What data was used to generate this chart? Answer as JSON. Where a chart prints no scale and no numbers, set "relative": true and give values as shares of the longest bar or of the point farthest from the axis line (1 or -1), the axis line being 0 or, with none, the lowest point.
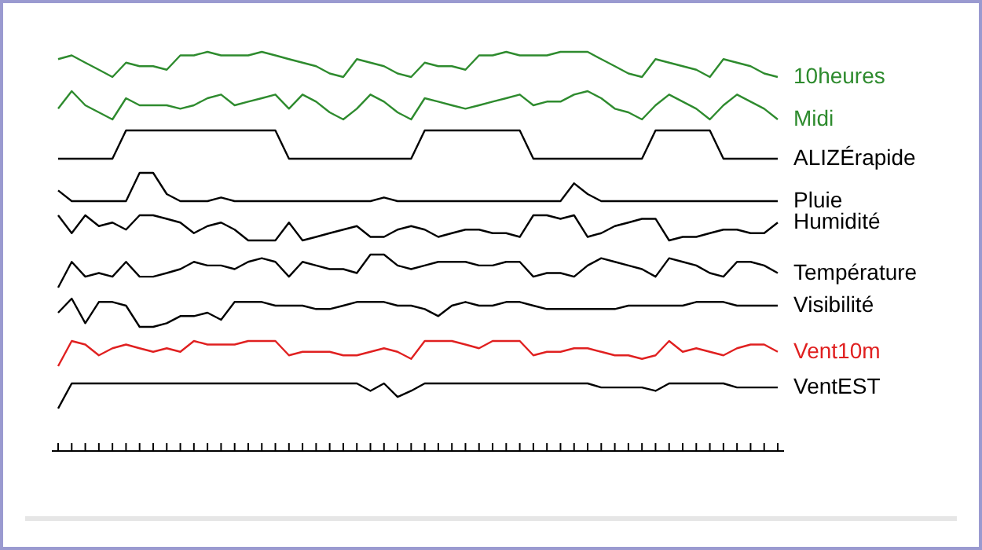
{
  "chart_data": [
    {
      "type": "line",
      "relative": true,
      "categories": [
        null,
        null,
        null,
        null,
        null,
        null,
        null,
        null,
        null,
        null,
        null,
        null,
        null,
        null,
        null,
        null,
        null,
        null,
        null,
        null,
        null,
        null,
        null,
        null,
        null,
        null,
        null,
        null,
        null,
        null,
        null,
        null,
        null,
        null,
        null,
        null,
        null,
        null,
        null,
        null,
        null,
        null,
        null,
        null,
        null,
        null,
        null,
        null,
        null,
        null,
        null,
        null,
        null,
        null
      ],
      "series": [
        {
          "name": "10heures",
          "color": "#2e8b2e",
          "values": [
            0.71,
            0.86,
            0.57,
            0.29,
            0,
            0.57,
            0.43,
            0.43,
            0.29,
            0.86,
            0.86,
            1,
            0.86,
            0.86,
            0.86,
            1,
            0.86,
            0.71,
            0.57,
            0.43,
            0.14,
            0,
            0.71,
            0.57,
            0.43,
            0.14,
            0,
            0.57,
            0.43,
            0.43,
            0.29,
            0.86,
            0.86,
            1,
            0.86,
            0.86,
            0.86,
            1,
            1,
            1,
            0.71,
            0.43,
            0.14,
            0,
            0.71,
            0.57,
            0.43,
            0.29,
            0,
            0.71,
            0.57,
            0.43,
            0.14,
            0
          ]
        }
      ]
    },
    {
      "type": "line",
      "relative": true,
      "categories": [
        null,
        null,
        null,
        null,
        null,
        null,
        null,
        null,
        null,
        null,
        null,
        null,
        null,
        null,
        null,
        null,
        null,
        null,
        null,
        null,
        null,
        null,
        null,
        null,
        null,
        null,
        null,
        null,
        null,
        null,
        null,
        null,
        null,
        null,
        null,
        null,
        null,
        null,
        null,
        null,
        null,
        null,
        null,
        null,
        null,
        null,
        null,
        null,
        null,
        null,
        null,
        null,
        null,
        null
      ],
      "series": [
        {
          "name": "Midi",
          "color": "#2e8b2e",
          "values": [
            0.38,
            1,
            0.5,
            0.25,
            0,
            0.75,
            0.5,
            0.5,
            0.5,
            0.38,
            0.5,
            0.75,
            0.88,
            0.5,
            0.63,
            0.75,
            0.88,
            0.38,
            0.88,
            0.63,
            0.25,
            0,
            0.38,
            0.88,
            0.63,
            0.25,
            0,
            0.75,
            0.63,
            0.5,
            0.38,
            0.5,
            0.63,
            0.75,
            0.88,
            0.5,
            0.63,
            0.63,
            0.88,
            1,
            0.75,
            0.38,
            0.25,
            0,
            0.5,
            0.88,
            0.63,
            0.38,
            0,
            0.5,
            0.88,
            0.63,
            0.38,
            0
          ]
        }
      ]
    },
    {
      "type": "line",
      "relative": true,
      "categories": [
        null,
        null,
        null,
        null,
        null,
        null,
        null,
        null,
        null,
        null,
        null,
        null,
        null,
        null,
        null,
        null,
        null,
        null,
        null,
        null,
        null,
        null,
        null,
        null,
        null,
        null,
        null,
        null,
        null,
        null,
        null,
        null,
        null,
        null,
        null,
        null,
        null,
        null,
        null,
        null,
        null,
        null,
        null,
        null,
        null,
        null,
        null,
        null,
        null,
        null,
        null,
        null,
        null,
        null
      ],
      "series": [
        {
          "name": "ALIZÉrapide",
          "color": "#000000",
          "values": [
            0,
            0,
            0,
            0,
            0,
            1,
            1,
            1,
            1,
            1,
            1,
            1,
            1,
            1,
            1,
            1,
            1,
            0,
            0,
            0,
            0,
            0,
            0,
            0,
            0,
            0,
            0,
            1,
            1,
            1,
            1,
            1,
            1,
            1,
            1,
            0,
            0,
            0,
            0,
            0,
            0,
            0,
            0,
            0,
            1,
            1,
            1,
            1,
            1,
            0,
            0,
            0,
            0,
            0
          ]
        }
      ]
    },
    {
      "type": "line",
      "relative": true,
      "categories": [
        null,
        null,
        null,
        null,
        null,
        null,
        null,
        null,
        null,
        null,
        null,
        null,
        null,
        null,
        null,
        null,
        null,
        null,
        null,
        null,
        null,
        null,
        null,
        null,
        null,
        null,
        null,
        null,
        null,
        null,
        null,
        null,
        null,
        null,
        null,
        null,
        null,
        null,
        null,
        null,
        null,
        null,
        null,
        null,
        null,
        null,
        null,
        null,
        null,
        null,
        null,
        null,
        null,
        null
      ],
      "series": [
        {
          "name": "Pluie",
          "color": "#000000",
          "values": [
            0.38,
            0,
            0,
            0,
            0,
            0,
            1,
            1,
            0.25,
            0,
            0,
            0,
            0.13,
            0,
            0,
            0,
            0,
            0,
            0,
            0,
            0,
            0,
            0,
            0,
            0.13,
            0,
            0,
            0,
            0,
            0,
            0,
            0,
            0,
            0,
            0,
            0,
            0,
            0,
            0.63,
            0.25,
            0,
            0,
            0,
            0,
            0,
            0,
            0,
            0,
            0,
            0,
            0,
            0,
            0,
            0
          ]
        }
      ]
    },
    {
      "type": "line",
      "relative": true,
      "categories": [
        null,
        null,
        null,
        null,
        null,
        null,
        null,
        null,
        null,
        null,
        null,
        null,
        null,
        null,
        null,
        null,
        null,
        null,
        null,
        null,
        null,
        null,
        null,
        null,
        null,
        null,
        null,
        null,
        null,
        null,
        null,
        null,
        null,
        null,
        null,
        null,
        null,
        null,
        null,
        null,
        null,
        null,
        null,
        null,
        null,
        null,
        null,
        null,
        null,
        null,
        null,
        null,
        null,
        null
      ],
      "series": [
        {
          "name": "Humidité",
          "color": "#000000",
          "values": [
            1,
            0.29,
            1,
            0.57,
            0.71,
            0.43,
            1,
            1,
            0.86,
            0.71,
            0.29,
            0.57,
            0.71,
            0.43,
            0,
            0,
            0,
            0.71,
            0,
            0.14,
            0.29,
            0.43,
            0.57,
            0.14,
            0.14,
            0.43,
            0.57,
            0.43,
            0.14,
            0.29,
            0.43,
            0.43,
            0.29,
            0.29,
            0.14,
            1,
            1,
            0.86,
            1,
            0.14,
            0.29,
            0.57,
            0.71,
            0.86,
            0.86,
            0,
            0.14,
            0.14,
            0.29,
            0.43,
            0.43,
            0.29,
            0.29,
            0.71
          ]
        }
      ]
    },
    {
      "type": "line",
      "relative": true,
      "categories": [
        null,
        null,
        null,
        null,
        null,
        null,
        null,
        null,
        null,
        null,
        null,
        null,
        null,
        null,
        null,
        null,
        null,
        null,
        null,
        null,
        null,
        null,
        null,
        null,
        null,
        null,
        null,
        null,
        null,
        null,
        null,
        null,
        null,
        null,
        null,
        null,
        null,
        null,
        null,
        null,
        null,
        null,
        null,
        null,
        null,
        null,
        null,
        null,
        null,
        null,
        null,
        null,
        null,
        null
      ],
      "series": [
        {
          "name": "Température",
          "color": "#000000",
          "values": [
            0,
            0.78,
            0.33,
            0.44,
            0.33,
            0.78,
            0.33,
            0.33,
            0.44,
            0.56,
            0.78,
            0.67,
            0.67,
            0.56,
            0.78,
            0.89,
            0.78,
            0.33,
            0.78,
            0.67,
            0.56,
            0.56,
            0.44,
            1,
            1,
            0.67,
            0.56,
            0.67,
            0.78,
            0.78,
            0.78,
            0.67,
            0.67,
            0.78,
            0.78,
            0.33,
            0.44,
            0.44,
            0.33,
            0.67,
            0.89,
            0.78,
            0.67,
            0.56,
            0.33,
            0.89,
            0.78,
            0.67,
            0.44,
            0.33,
            0.78,
            0.78,
            0.67,
            0.44
          ]
        }
      ]
    },
    {
      "type": "line",
      "relative": true,
      "categories": [
        null,
        null,
        null,
        null,
        null,
        null,
        null,
        null,
        null,
        null,
        null,
        null,
        null,
        null,
        null,
        null,
        null,
        null,
        null,
        null,
        null,
        null,
        null,
        null,
        null,
        null,
        null,
        null,
        null,
        null,
        null,
        null,
        null,
        null,
        null,
        null,
        null,
        null,
        null,
        null,
        null,
        null,
        null,
        null,
        null,
        null,
        null,
        null,
        null,
        null,
        null,
        null,
        null,
        null
      ],
      "series": [
        {
          "name": "Visibilité",
          "color": "#000000",
          "values": [
            0.5,
            1,
            0.13,
            0.88,
            0.88,
            0.75,
            0,
            0,
            0.13,
            0.38,
            0.38,
            0.5,
            0.25,
            0.88,
            0.88,
            0.88,
            0.75,
            0.75,
            0.75,
            0.63,
            0.63,
            0.75,
            0.88,
            0.88,
            0.88,
            0.75,
            0.75,
            0.63,
            0.38,
            0.75,
            0.88,
            0.75,
            0.75,
            0.88,
            0.88,
            0.75,
            0.63,
            0.63,
            0.63,
            0.63,
            0.63,
            0.63,
            0.75,
            0.75,
            0.75,
            0.75,
            0.75,
            0.88,
            0.88,
            0.88,
            0.75,
            0.75,
            0.75,
            0.75
          ]
        }
      ]
    },
    {
      "type": "line",
      "relative": true,
      "categories": [
        null,
        null,
        null,
        null,
        null,
        null,
        null,
        null,
        null,
        null,
        null,
        null,
        null,
        null,
        null,
        null,
        null,
        null,
        null,
        null,
        null,
        null,
        null,
        null,
        null,
        null,
        null,
        null,
        null,
        null,
        null,
        null,
        null,
        null,
        null,
        null,
        null,
        null,
        null,
        null,
        null,
        null,
        null,
        null,
        null,
        null,
        null,
        null,
        null,
        null,
        null,
        null,
        null,
        null
      ],
      "series": [
        {
          "name": "Vent10m",
          "color": "#e02020",
          "values": [
            0,
            1,
            0.86,
            0.43,
            0.71,
            0.86,
            0.71,
            0.57,
            0.71,
            0.57,
            1,
            0.86,
            0.86,
            0.86,
            1,
            1,
            1,
            0.43,
            0.57,
            0.57,
            0.57,
            0.43,
            0.43,
            0.57,
            0.71,
            0.57,
            0.29,
            1,
            1,
            1,
            0.86,
            0.71,
            1,
            1,
            1,
            0.43,
            0.57,
            0.57,
            0.71,
            0.71,
            0.57,
            0.43,
            0.43,
            0.29,
            0.43,
            1,
            0.57,
            0.71,
            0.57,
            0.43,
            0.71,
            0.86,
            0.86,
            0.57
          ]
        }
      ]
    },
    {
      "type": "line",
      "relative": true,
      "categories": [
        null,
        null,
        null,
        null,
        null,
        null,
        null,
        null,
        null,
        null,
        null,
        null,
        null,
        null,
        null,
        null,
        null,
        null,
        null,
        null,
        null,
        null,
        null,
        null,
        null,
        null,
        null,
        null,
        null,
        null,
        null,
        null,
        null,
        null,
        null,
        null,
        null,
        null,
        null,
        null,
        null,
        null,
        null,
        null,
        null,
        null,
        null,
        null,
        null,
        null,
        null,
        null,
        null,
        null
      ],
      "series": [
        {
          "name": "VentEST",
          "color": "#000000",
          "values": [
            0.63,
            1,
            1,
            1,
            1,
            1,
            1,
            1,
            1,
            1,
            1,
            1,
            1,
            1,
            1,
            1,
            1,
            1,
            1,
            1,
            1,
            1,
            1,
            0.89,
            1,
            0.8,
            0.89,
            1,
            1,
            1,
            1,
            1,
            1,
            1,
            1,
            1,
            1,
            1,
            1,
            1,
            0.94,
            0.94,
            0.94,
            0.94,
            0.89,
            1,
            1,
            1,
            1,
            1,
            0.94,
            0.94,
            0.94,
            0.94
          ]
        }
      ]
    }
  ]
}
